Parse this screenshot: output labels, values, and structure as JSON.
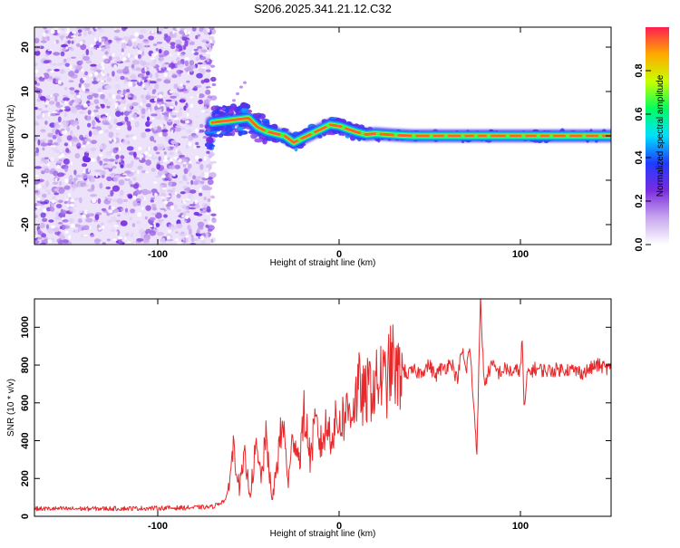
{
  "chart_data": [
    {
      "type": "heatmap",
      "title": "S206.2025.341.21.12.C32",
      "xlabel": "Height of straight line (km)",
      "ylabel": "Frequency (Hz)",
      "xlim": [
        -168,
        150
      ],
      "ylim": [
        -24.5,
        24.5
      ],
      "xticks": [
        -100,
        0,
        100
      ],
      "yticks": [
        -20,
        -10,
        0,
        10,
        20
      ],
      "colorbar": {
        "label": "Normalized spectral amplitude",
        "range": [
          0,
          1
        ],
        "ticks": [
          0.0,
          0.2,
          0.4,
          0.6,
          0.8
        ],
        "tick_labels": [
          "0.0",
          "0.2",
          "0.4",
          "0.6",
          "0.8"
        ],
        "colors": [
          "#ffffff",
          "#c7a6ee",
          "#7a2be0",
          "#1f3cff",
          "#00e0ff",
          "#00ff60",
          "#c8ff00",
          "#ffaa00",
          "#ff1e50"
        ]
      },
      "noise_region_km": [
        -168,
        -71
      ],
      "ridge": {
        "name": "dominant frequency ridge",
        "x": [
          -70,
          -60,
          -50,
          -45,
          -40,
          -35,
          -30,
          -25,
          -20,
          -15,
          -10,
          -5,
          0,
          5,
          10,
          15,
          20,
          30,
          40,
          60,
          80,
          100,
          120,
          150
        ],
        "y": [
          3.0,
          3.5,
          4.0,
          2.0,
          1.0,
          0.5,
          0.0,
          -1.5,
          -0.5,
          0.5,
          1.5,
          2.5,
          2.2,
          1.5,
          0.8,
          0.3,
          0.5,
          0.2,
          0.0,
          0.0,
          0.0,
          0.0,
          0.0,
          0.0
        ]
      }
    },
    {
      "type": "line",
      "xlabel": "Height of straight line (km)",
      "ylabel": "SNR (10 * v/v)",
      "xlim": [
        -168,
        150
      ],
      "ylim": [
        0,
        1150
      ],
      "xticks": [
        -100,
        0,
        100
      ],
      "yticks": [
        0,
        200,
        400,
        600,
        800,
        1000
      ],
      "series": [
        {
          "name": "SNR",
          "color": "#e8282a",
          "x": [
            -168,
            -140,
            -110,
            -85,
            -70,
            -62,
            -58,
            -55,
            -52,
            -49,
            -46,
            -43,
            -40,
            -37,
            -34,
            -31,
            -28,
            -25,
            -22,
            -19,
            -16,
            -13,
            -10,
            -7,
            -4,
            -1,
            2,
            5,
            8,
            11,
            14,
            17,
            20,
            23,
            26,
            29,
            32,
            35,
            38,
            41,
            44,
            47,
            50,
            53,
            56,
            59,
            62,
            65,
            68,
            70,
            72,
            74,
            76,
            78,
            80,
            84,
            88,
            92,
            96,
            100,
            101,
            102,
            104,
            108,
            115,
            125,
            135,
            142,
            150
          ],
          "y": [
            40,
            40,
            42,
            45,
            50,
            90,
            380,
            150,
            300,
            120,
            350,
            210,
            420,
            70,
            300,
            500,
            180,
            450,
            300,
            550,
            310,
            480,
            380,
            470,
            440,
            500,
            520,
            560,
            590,
            680,
            620,
            690,
            680,
            740,
            700,
            830,
            730,
            780,
            750,
            770,
            760,
            780,
            800,
            740,
            780,
            790,
            820,
            720,
            880,
            760,
            900,
            620,
            350,
            1150,
            700,
            800,
            760,
            780,
            760,
            780,
            940,
            560,
            760,
            780,
            770,
            780,
            760,
            800,
            780
          ]
        }
      ]
    }
  ]
}
